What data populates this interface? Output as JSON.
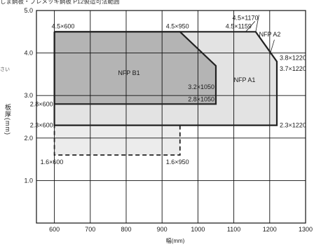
{
  "title": "しま鋼板・プレメッキ鋼板 P12製造可法範囲",
  "side_note": "さい",
  "colors": {
    "region_a2": "#e3e3e3",
    "region_a1": "#cccccc",
    "region_b1": "#b4b4b4",
    "region_dashed": "#ececec",
    "outline": "#222222",
    "grid": "#111111"
  },
  "chart_data": {
    "type": "area",
    "xlabel": "幅(mm)",
    "ylabel": "板厚(mm)",
    "xlim": [
      550,
      1300
    ],
    "ylim": [
      0,
      5.0
    ],
    "x_ticks": [
      "600",
      "700",
      "800",
      "900",
      "1000",
      "1100",
      "1200",
      "1300"
    ],
    "y_ticks": [
      "1.0",
      "2.0",
      "3.0",
      "4.0",
      "5.0"
    ],
    "grid": true,
    "regions": [
      {
        "name": "NFP A2",
        "points": [
          [
            600,
            4.5
          ],
          [
            1133,
            4.5
          ],
          [
            1161,
            4.5
          ],
          [
            1220,
            3.8
          ],
          [
            1220,
            2.3
          ],
          [
            600,
            2.3
          ]
        ]
      },
      {
        "name": "NFP A1",
        "points": [
          [
            600,
            4.5
          ],
          [
            950,
            4.5
          ],
          [
            1050,
            3.7
          ],
          [
            1050,
            2.8
          ],
          [
            600,
            2.8
          ]
        ]
      },
      {
        "name": "NFP B1",
        "points": [
          [
            600,
            4.5
          ],
          [
            950,
            4.5
          ],
          [
            1050,
            3.7
          ],
          [
            1050,
            2.8
          ],
          [
            600,
            2.8
          ]
        ]
      },
      {
        "name": "",
        "style": "dashed",
        "points": [
          [
            600,
            2.3
          ],
          [
            950,
            2.3
          ],
          [
            950,
            1.6
          ],
          [
            600,
            1.6
          ]
        ]
      }
    ],
    "annotations": [
      {
        "text": "4.5×600",
        "x": 600,
        "y": 4.5
      },
      {
        "text": "4.5×950",
        "x": 950,
        "y": 4.5
      },
      {
        "text": "4.5×1159",
        "x": 1159,
        "y": 4.5
      },
      {
        "text": "4.5×1170",
        "x": 1170,
        "y": 4.5
      },
      {
        "text": "3.2×1050",
        "x": 1050,
        "y": 3.2
      },
      {
        "text": "3.8×1220",
        "x": 1220,
        "y": 3.8
      },
      {
        "text": "3.7×1220",
        "x": 1220,
        "y": 3.7
      },
      {
        "text": "2.8×1050",
        "x": 1050,
        "y": 2.8
      },
      {
        "text": "2.8×600",
        "x": 600,
        "y": 2.8
      },
      {
        "text": "2.3×600",
        "x": 600,
        "y": 2.3
      },
      {
        "text": "2.3×1220",
        "x": 1220,
        "y": 2.3
      },
      {
        "text": "1.6×600",
        "x": 600,
        "y": 1.6
      },
      {
        "text": "1.6×950",
        "x": 950,
        "y": 1.6
      }
    ]
  }
}
